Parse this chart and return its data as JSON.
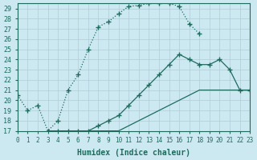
{
  "xlabel": "Humidex (Indice chaleur)",
  "bg_color": "#cce8f0",
  "line_color": "#1e6b5e",
  "grid_color": "#b0cdd8",
  "xlim": [
    0,
    23
  ],
  "ylim": [
    17,
    29.5
  ],
  "yticks": [
    17,
    18,
    19,
    20,
    21,
    22,
    23,
    24,
    25,
    26,
    27,
    28,
    29
  ],
  "xticks": [
    0,
    1,
    2,
    3,
    4,
    5,
    6,
    7,
    8,
    9,
    10,
    11,
    12,
    13,
    14,
    15,
    16,
    17,
    18,
    19,
    20,
    21,
    22,
    23
  ],
  "curve1_x": [
    0,
    1,
    2,
    3,
    4,
    5,
    6,
    7,
    8,
    9,
    10,
    11,
    12,
    13,
    14,
    15,
    16,
    17,
    18
  ],
  "curve1_y": [
    20.5,
    19.0,
    19.5,
    17.0,
    18.0,
    21.0,
    22.5,
    25.0,
    27.2,
    27.7,
    28.5,
    29.2,
    29.3,
    29.5,
    29.5,
    29.5,
    29.2,
    27.5,
    26.5
  ],
  "curve2_x": [
    3,
    4,
    5,
    6,
    7,
    8,
    9,
    10,
    11,
    12,
    13,
    14,
    15,
    16,
    17,
    18,
    19,
    20,
    21,
    22,
    23
  ],
  "curve2_y": [
    17.0,
    17.0,
    17.0,
    17.0,
    17.0,
    17.5,
    18.0,
    18.5,
    19.5,
    20.5,
    21.5,
    22.5,
    23.5,
    24.5,
    24.0,
    23.5,
    23.5,
    24.0,
    23.0,
    21.0,
    21.0
  ],
  "curve3_x": [
    3,
    4,
    5,
    6,
    7,
    8,
    9,
    10,
    11,
    12,
    13,
    14,
    15,
    16,
    17,
    18,
    19,
    20,
    21,
    22,
    23
  ],
  "curve3_y": [
    17.0,
    17.0,
    17.0,
    17.0,
    17.0,
    17.0,
    17.0,
    17.0,
    17.5,
    18.0,
    18.5,
    19.0,
    19.5,
    20.0,
    20.5,
    21.0,
    21.0,
    21.0,
    21.0,
    21.0,
    21.0
  ]
}
